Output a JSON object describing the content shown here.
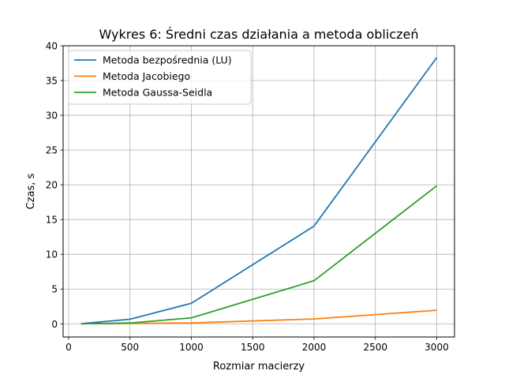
{
  "chart_data": {
    "type": "line",
    "title": "Wykres 6: Średni czas działania a metoda obliczeń",
    "xlabel": "Rozmiar macierzy",
    "ylabel": "Czas, s",
    "xlim": [
      -45,
      3145
    ],
    "ylim": [
      -1.9,
      40.0
    ],
    "xticks": [
      0,
      500,
      1000,
      1500,
      2000,
      2500,
      3000
    ],
    "yticks": [
      0,
      5,
      10,
      15,
      20,
      25,
      30,
      35,
      40
    ],
    "grid": true,
    "legend_position": "top-left",
    "x": [
      100,
      500,
      1000,
      2000,
      3000
    ],
    "series": [
      {
        "name": "Metoda bezpośrednia (LU)",
        "color": "#1f77b4",
        "values": [
          0.02,
          0.65,
          2.95,
          14.05,
          38.3
        ]
      },
      {
        "name": "Metoda Jacobiego",
        "color": "#ff7f0e",
        "values": [
          0.0,
          0.05,
          0.12,
          0.7,
          1.95
        ]
      },
      {
        "name": "Metoda Gaussa-Seidla",
        "color": "#2ca02c",
        "values": [
          0.0,
          0.12,
          0.85,
          6.2,
          19.85
        ]
      }
    ]
  }
}
